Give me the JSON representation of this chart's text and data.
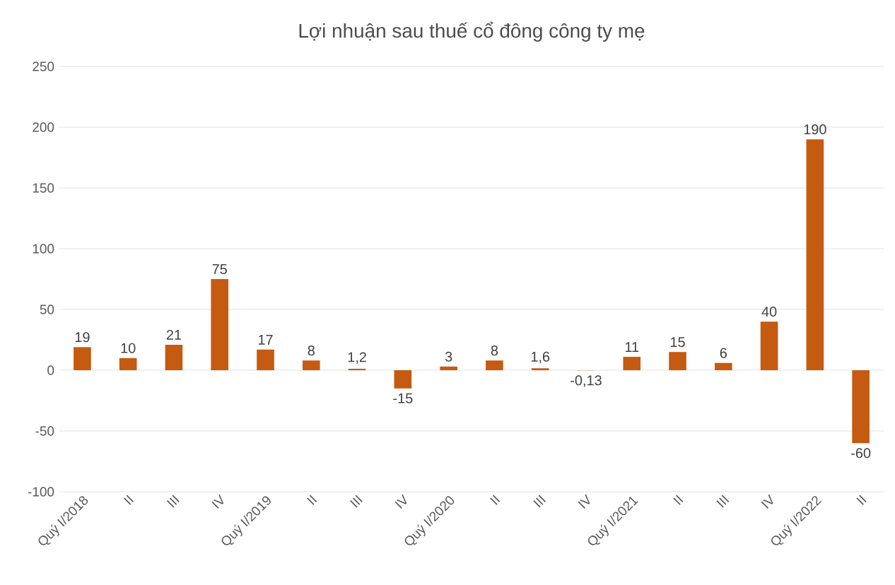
{
  "chart_data": {
    "type": "bar",
    "title": "Lợi nhuận sau thuế cổ đông công ty mẹ",
    "categories": [
      "Quý I/2018",
      "II",
      "III",
      "IV",
      "Quý I/2019",
      "II",
      "III",
      "IV",
      "Quý I/2020",
      "II",
      "III",
      "IV",
      "Quý I/2021",
      "II",
      "III",
      "IV",
      "Quý I/2022",
      "II"
    ],
    "values": [
      19,
      10,
      21,
      75,
      17,
      8,
      1.2,
      -15,
      3,
      8,
      1.6,
      -0.13,
      11,
      15,
      6,
      40,
      190,
      -60
    ],
    "value_labels": [
      "19",
      "10",
      "21",
      "75",
      "17",
      "8",
      "1,2",
      "-15",
      "3",
      "8",
      "1,6",
      "-0,13",
      "11",
      "15",
      "6",
      "40",
      "190",
      "-60"
    ],
    "color": "#c55a11",
    "ylim": [
      -100,
      250
    ],
    "yticks": [
      -100,
      -50,
      0,
      50,
      100,
      150,
      200,
      250
    ],
    "grid": "y"
  }
}
